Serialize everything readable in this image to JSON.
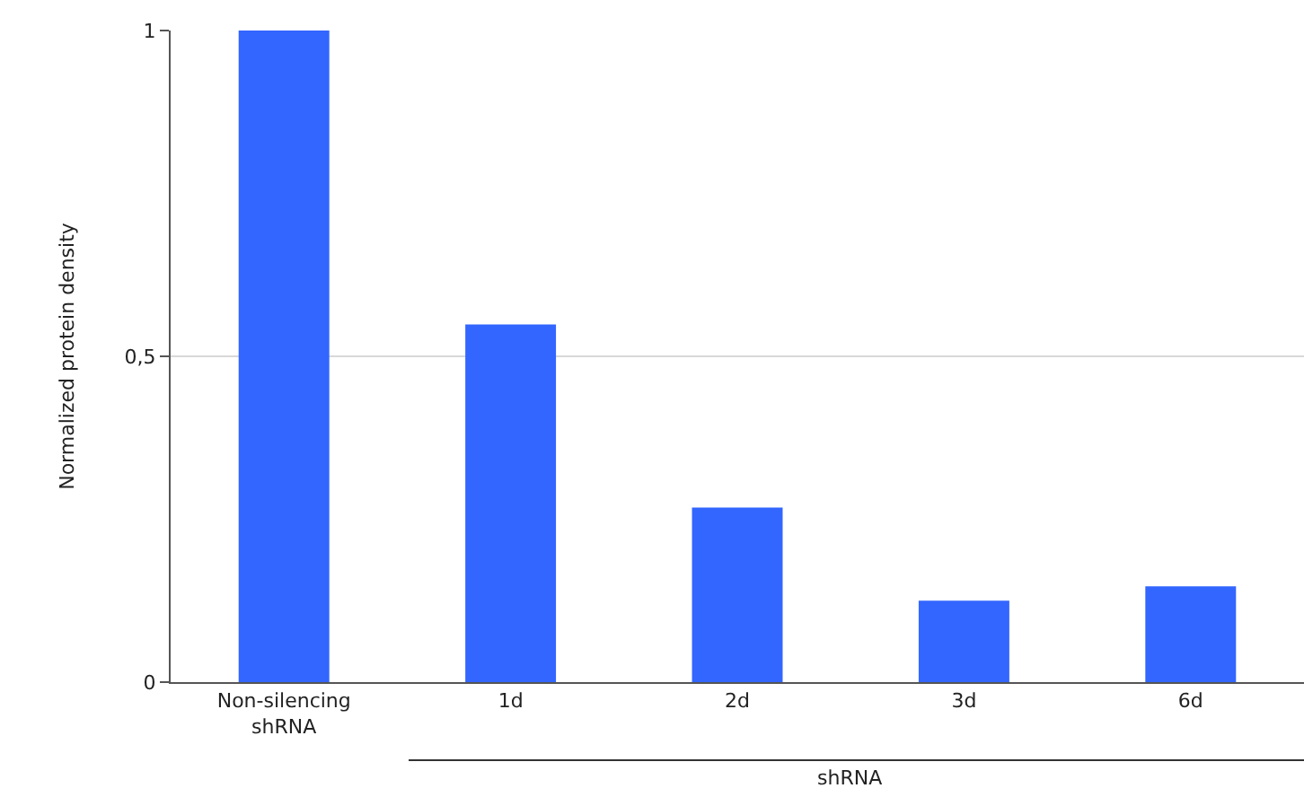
{
  "chart_data": {
    "type": "bar",
    "ylabel": "Normalized protein density",
    "categories": [
      "Non-silencing shRNA",
      "1d",
      "2d",
      "3d",
      "6d"
    ],
    "values": [
      1,
      0.549,
      0.268,
      0.125,
      0.147
    ],
    "color": "#3366ff",
    "ylim": [
      0,
      1
    ],
    "yticks": [
      0,
      {
        "value": 0.5,
        "label": "0,5"
      },
      1
    ],
    "grid": "y",
    "annotations": [
      "shRNA"
    ]
  }
}
